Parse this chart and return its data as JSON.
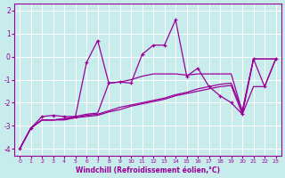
{
  "xlabel": "Windchill (Refroidissement éolien,°C)",
  "bg_color": "#c8ecec",
  "line_color": "#990099",
  "grid_color": "#ffffff",
  "xlim": [
    -0.5,
    23.5
  ],
  "ylim": [
    -4.3,
    2.3
  ],
  "xticks": [
    0,
    1,
    2,
    3,
    4,
    5,
    6,
    7,
    8,
    9,
    10,
    11,
    12,
    13,
    14,
    15,
    16,
    17,
    18,
    19,
    20,
    21,
    22,
    23
  ],
  "yticks": [
    -4,
    -3,
    -2,
    -1,
    0,
    1,
    2
  ],
  "main_x": [
    0,
    1,
    2,
    3,
    4,
    5,
    6,
    7,
    8,
    9,
    10,
    11,
    12,
    13,
    14,
    15,
    16,
    17,
    18,
    19,
    20,
    21,
    22,
    23
  ],
  "main_y": [
    -4.0,
    -3.1,
    -2.6,
    -2.55,
    -2.6,
    -2.6,
    -0.25,
    0.7,
    -1.15,
    -1.1,
    -1.15,
    0.1,
    0.5,
    0.5,
    1.6,
    -0.85,
    -0.5,
    -1.3,
    -1.7,
    -2.0,
    -2.5,
    -0.1,
    -1.3,
    -0.1
  ],
  "line2_x": [
    0,
    1,
    2,
    3,
    4,
    5,
    6,
    7,
    8,
    9,
    10,
    11,
    12,
    13,
    14,
    15,
    16,
    17,
    18,
    19,
    20,
    21,
    22,
    23
  ],
  "line2_y": [
    -4.0,
    -3.1,
    -2.75,
    -2.75,
    -2.7,
    -2.65,
    -2.55,
    -2.5,
    -2.35,
    -2.2,
    -2.1,
    -2.0,
    -1.9,
    -1.8,
    -1.65,
    -1.55,
    -1.4,
    -1.3,
    -1.2,
    -1.15,
    -2.35,
    -0.1,
    -0.1,
    -0.1
  ],
  "line3_x": [
    0,
    1,
    2,
    3,
    4,
    5,
    6,
    7,
    8,
    9,
    10,
    11,
    12,
    13,
    14,
    15,
    16,
    17,
    18,
    19,
    20,
    21,
    22,
    23
  ],
  "line3_y": [
    -4.0,
    -3.1,
    -2.75,
    -2.75,
    -2.75,
    -2.65,
    -2.6,
    -2.55,
    -2.4,
    -2.3,
    -2.15,
    -2.05,
    -1.95,
    -1.85,
    -1.7,
    -1.6,
    -1.5,
    -1.4,
    -1.3,
    -1.25,
    -2.5,
    -1.3,
    -1.3,
    -0.1
  ],
  "line4_x": [
    0,
    1,
    2,
    3,
    4,
    5,
    6,
    7,
    8,
    9,
    10,
    11,
    12,
    13,
    14,
    15,
    16,
    17,
    18,
    19,
    20,
    21,
    22,
    23
  ],
  "line4_y": [
    -4.0,
    -3.1,
    -2.75,
    -2.75,
    -2.7,
    -2.6,
    -2.5,
    -2.45,
    -1.15,
    -1.1,
    -1.0,
    -0.85,
    -0.75,
    -0.75,
    -0.75,
    -0.8,
    -0.75,
    -0.75,
    -0.75,
    -0.75,
    -2.4,
    -0.1,
    -0.1,
    -0.1
  ]
}
